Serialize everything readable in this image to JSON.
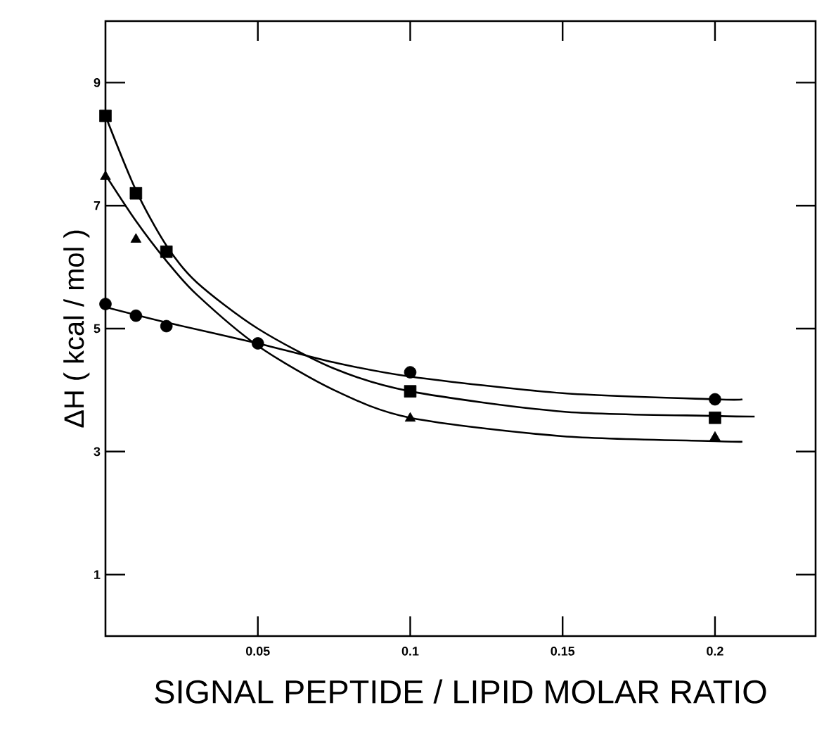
{
  "chart_data": {
    "type": "scatter",
    "xlabel": "SIGNAL PEPTIDE / LIPID MOLAR RATIO",
    "ylabel": "ΔH  ( kcal / mol )",
    "xlim": [
      0,
      0.233
    ],
    "ylim": [
      0,
      10
    ],
    "xticks": [
      0.05,
      0.1,
      0.15,
      0.2
    ],
    "yticks": [
      1,
      3,
      5,
      7,
      9
    ],
    "grid": false,
    "series": [
      {
        "type": "scatter",
        "marker": "square",
        "color": "#000000",
        "x": [
          0,
          0.01,
          0.02,
          0.1,
          0.2
        ],
        "values": [
          8.46,
          7.2,
          6.25,
          3.98,
          3.55
        ]
      },
      {
        "type": "scatter",
        "marker": "triangle",
        "color": "#000000",
        "x": [
          0,
          0.01,
          0.1,
          0.2
        ],
        "values": [
          7.47,
          6.45,
          3.54,
          3.23
        ]
      },
      {
        "type": "scatter",
        "marker": "circle",
        "color": "#000000",
        "x": [
          0,
          0.01,
          0.02,
          0.05,
          0.1,
          0.2
        ],
        "values": [
          5.4,
          5.21,
          5.04,
          4.76,
          4.29,
          3.85
        ]
      },
      {
        "type": "line",
        "marker": "none",
        "line_style": "solid",
        "color": "#000000",
        "x": [
          0,
          0.01,
          0.02,
          0.03,
          0.05,
          0.075,
          0.1,
          0.15,
          0.2,
          0.213
        ],
        "values": [
          8.46,
          7.25,
          6.35,
          5.75,
          5.0,
          4.35,
          3.98,
          3.65,
          3.58,
          3.57
        ]
      },
      {
        "type": "line",
        "marker": "none",
        "line_style": "solid",
        "color": "#000000",
        "x": [
          0,
          0.01,
          0.02,
          0.03,
          0.05,
          0.075,
          0.1,
          0.15,
          0.2,
          0.209
        ],
        "values": [
          7.5,
          6.75,
          6.1,
          5.55,
          4.72,
          4.0,
          3.55,
          3.25,
          3.17,
          3.16
        ]
      },
      {
        "type": "line",
        "marker": "none",
        "line_style": "solid",
        "color": "#000000",
        "x": [
          0,
          0.02,
          0.05,
          0.075,
          0.1,
          0.15,
          0.2,
          0.209
        ],
        "values": [
          5.35,
          5.1,
          4.76,
          4.45,
          4.22,
          3.95,
          3.85,
          3.85
        ]
      }
    ]
  }
}
